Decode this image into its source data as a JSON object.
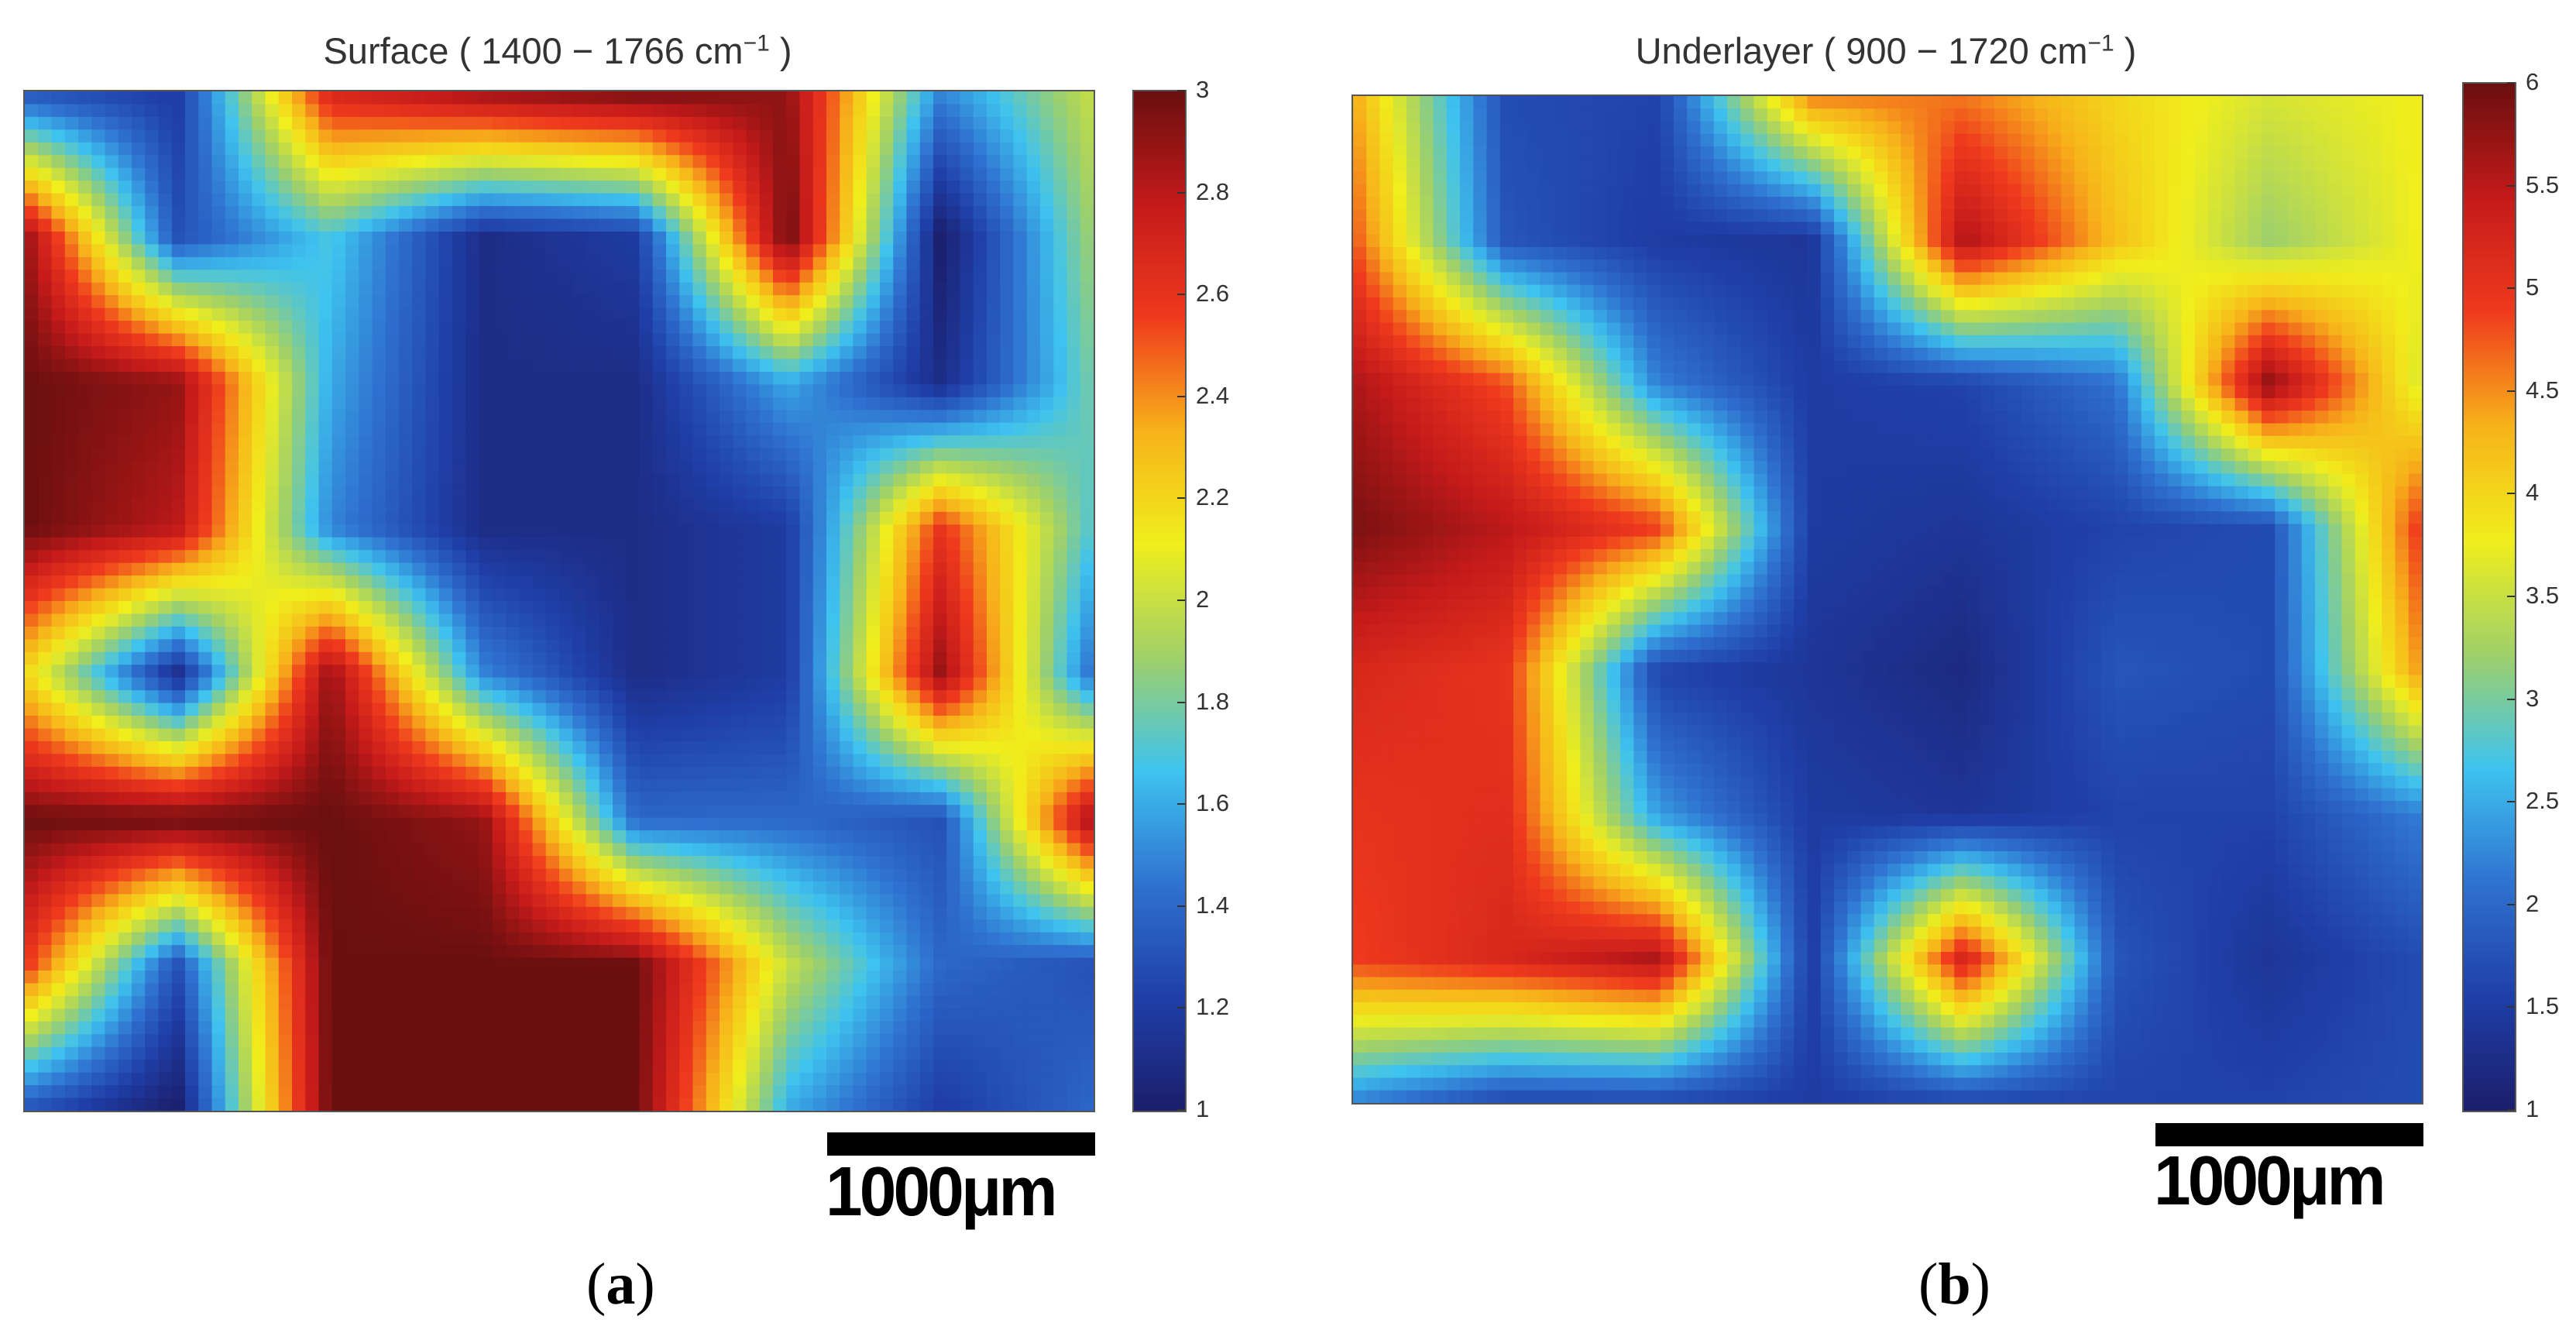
{
  "figure": {
    "panels": [
      {
        "title_main": "Surface ( 1400 − 1766 cm",
        "title_sup": "−1",
        "title_end": " )",
        "caption_open": "(",
        "caption_letter": "a",
        "caption_close": ")",
        "scale_label": "1000μm"
      },
      {
        "title_main": "Underlayer ( 900 − 1720 cm",
        "title_sup": "−1",
        "title_end": " )",
        "caption_open": "(",
        "caption_letter": "b",
        "caption_close": ")",
        "scale_label": "1000μm"
      }
    ]
  },
  "colors": {
    "colormap": [
      "#1b1e6b",
      "#1f3fa8",
      "#2f72d0",
      "#3ec3ef",
      "#9fd06a",
      "#f0ee1c",
      "#f7b21a",
      "#ef3a1d",
      "#c41a1a",
      "#6a0f0f"
    ]
  },
  "chart_data": [
    {
      "type": "heatmap",
      "title": "Surface ( 1400 − 1766 cm−1 )",
      "colorbar": {
        "min": 1,
        "max": 3,
        "ticks": [
          "1",
          "1.2",
          "1.4",
          "1.6",
          "1.8",
          "2",
          "2.2",
          "2.4",
          "2.6",
          "2.8",
          "3"
        ]
      },
      "grid": [
        [
          1.3,
          1.2,
          2.7,
          2.9,
          3.0,
          2.9,
          1.5,
          2.0
        ],
        [
          2.9,
          1.3,
          1.7,
          1.1,
          1.2,
          3.0,
          1.0,
          1.9
        ],
        [
          3.0,
          2.9,
          1.6,
          1.1,
          1.1,
          1.6,
          1.1,
          1.8
        ],
        [
          3.0,
          2.8,
          1.5,
          1.1,
          1.1,
          1.2,
          2.6,
          1.7
        ],
        [
          2.2,
          1.1,
          2.9,
          1.5,
          1.1,
          1.2,
          2.9,
          1.4
        ],
        [
          3.0,
          3.0,
          3.0,
          2.9,
          1.4,
          1.4,
          1.3,
          2.9
        ],
        [
          2.6,
          1.3,
          3.0,
          3.0,
          3.0,
          2.0,
          1.4,
          1.3
        ],
        [
          1.3,
          1.0,
          3.0,
          3.0,
          3.0,
          1.6,
          1.2,
          1.4
        ]
      ]
    },
    {
      "type": "heatmap",
      "title": "Underlayer ( 900 − 1720 cm−1 )",
      "colorbar": {
        "min": 1,
        "max": 6,
        "ticks": [
          "1",
          "1.5",
          "2",
          "2.5",
          "3",
          "3.5",
          "4",
          "4.5",
          "5",
          "5.5",
          "6"
        ]
      },
      "grid": [
        [
          4.4,
          1.7,
          1.6,
          4.6,
          4.6,
          4.0,
          3.6,
          3.8
        ],
        [
          4.8,
          1.8,
          1.5,
          1.4,
          5.6,
          4.2,
          3.2,
          3.8
        ],
        [
          5.6,
          4.8,
          2.2,
          1.5,
          1.6,
          2.1,
          5.8,
          3.6
        ],
        [
          5.9,
          5.5,
          4.9,
          1.5,
          1.4,
          1.6,
          1.7,
          5.0
        ],
        [
          5.2,
          5.0,
          1.6,
          1.4,
          1.2,
          1.8,
          1.7,
          4.5
        ],
        [
          5.0,
          5.1,
          2.4,
          1.5,
          1.4,
          1.6,
          1.6,
          2.2
        ],
        [
          4.9,
          5.2,
          5.6,
          1.5,
          5.3,
          1.8,
          1.4,
          1.7
        ],
        [
          2.2,
          1.6,
          1.6,
          1.5,
          1.6,
          1.6,
          1.6,
          1.7
        ]
      ]
    }
  ]
}
